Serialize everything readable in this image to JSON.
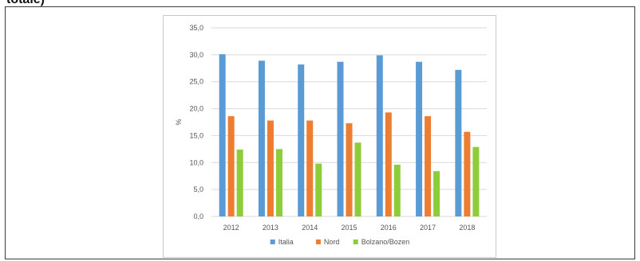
{
  "caption_fragment": "totale)",
  "chart_data": {
    "type": "bar",
    "categories": [
      "2012",
      "2013",
      "2014",
      "2015",
      "2016",
      "2017",
      "2018"
    ],
    "series": [
      {
        "name": "Italia",
        "color": "#5b9bd5",
        "values": [
          30.1,
          28.9,
          28.2,
          28.7,
          29.9,
          28.7,
          27.2
        ]
      },
      {
        "name": "Nord",
        "color": "#ed7d31",
        "values": [
          18.6,
          17.8,
          17.8,
          17.3,
          19.3,
          18.6,
          15.7
        ]
      },
      {
        "name": "Bolzano/Bozen",
        "color": "#8fcc3a",
        "values": [
          12.4,
          12.5,
          9.8,
          13.7,
          9.6,
          8.4,
          12.9
        ]
      }
    ],
    "ylabel": "%",
    "ylim": [
      0,
      35
    ],
    "yticks": [
      "0,0",
      "5,0",
      "10,0",
      "15,0",
      "20,0",
      "25,0",
      "30,0",
      "35,0"
    ],
    "grid": true,
    "legend_position": "bottom"
  }
}
